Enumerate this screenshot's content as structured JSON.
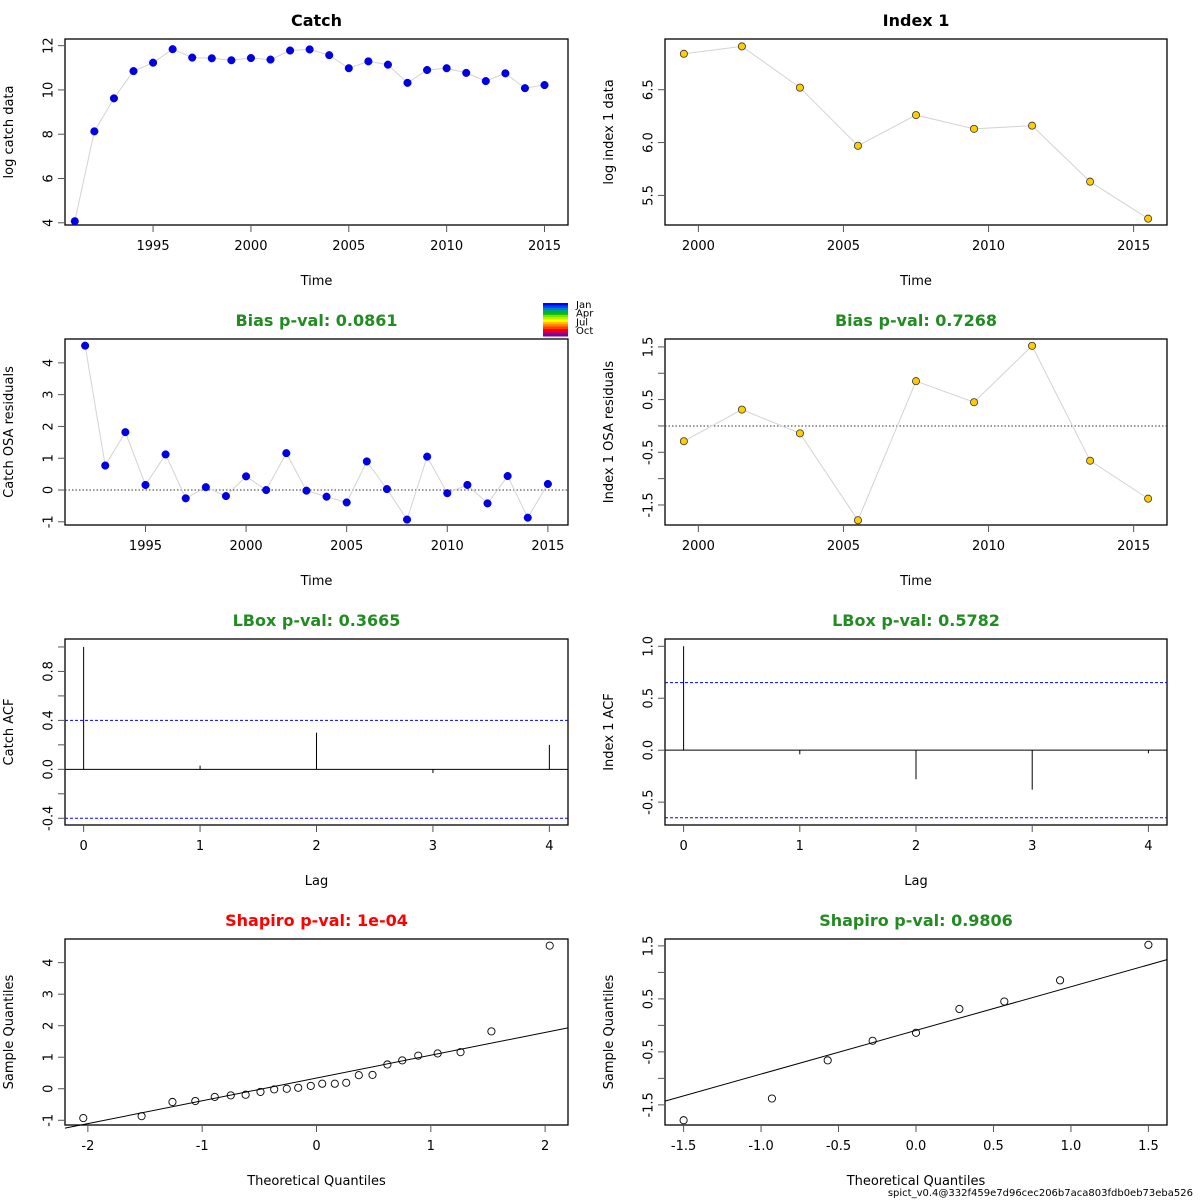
{
  "footer": "spict_v0.4@332f459e7d96cec206b7aca803fdb0eb73eba526",
  "colors": {
    "catch": "#0000e0",
    "index": "#ffcc00",
    "pass": "#228B22",
    "fail": "#ff0000",
    "ci": "#0000ff",
    "line": "#d3d3d3"
  },
  "legend": {
    "labels": [
      "Jan",
      "Apr",
      "Jul",
      "Oct"
    ]
  },
  "chart_data": [
    {
      "id": "catch-data",
      "type": "line",
      "title": "Catch",
      "title_color": "#000000",
      "xlabel": "Time",
      "ylabel": "log catch data",
      "xlim": [
        1990.5,
        2016.2
      ],
      "ylim": [
        3.9,
        12.3
      ],
      "xticks": [
        1995,
        2000,
        2005,
        2010,
        2015
      ],
      "yticks": [
        4,
        6,
        8,
        10,
        12
      ],
      "x": [
        1991,
        1992,
        1993,
        1994,
        1995,
        1996,
        1997,
        1998,
        1999,
        2000,
        2001,
        2002,
        2003,
        2004,
        2005,
        2006,
        2007,
        2008,
        2009,
        2010,
        2011,
        2012,
        2013,
        2014,
        2015
      ],
      "y": [
        4.07,
        8.13,
        9.62,
        10.85,
        11.23,
        11.84,
        11.46,
        11.43,
        11.34,
        11.44,
        11.37,
        11.78,
        11.83,
        11.57,
        10.98,
        11.29,
        11.14,
        10.32,
        10.9,
        10.98,
        10.77,
        10.4,
        10.75,
        10.08,
        10.22
      ],
      "marker": "filled",
      "point_color": "#0000e0"
    },
    {
      "id": "index-data",
      "type": "line",
      "title": "Index 1",
      "title_color": "#000000",
      "xlabel": "Time",
      "ylabel": "log index 1 data",
      "xlim": [
        1998.85,
        2016.15
      ],
      "ylim": [
        5.22,
        6.98
      ],
      "xticks": [
        2000,
        2005,
        2010,
        2015
      ],
      "yticks": [
        5.5,
        6.0,
        6.5
      ],
      "ytick_labels": [
        "5.5",
        "6.0",
        "6.5"
      ],
      "x": [
        1999.5,
        2001.5,
        2003.5,
        2005.5,
        2007.5,
        2009.5,
        2011.5,
        2013.5,
        2015.5
      ],
      "y": [
        6.84,
        6.91,
        6.52,
        5.97,
        6.26,
        6.13,
        6.16,
        5.63,
        5.28
      ],
      "marker": "filled-outline",
      "point_color": "#ffcc00"
    },
    {
      "id": "catch-residuals",
      "type": "line",
      "title": "Bias p-val: 0.0861",
      "title_color": "#228B22",
      "xlabel": "Time",
      "ylabel": "Catch OSA residuals",
      "xlim": [
        1991.0,
        2016.0
      ],
      "ylim": [
        -1.1,
        4.75
      ],
      "xticks": [
        1995,
        2000,
        2005,
        2010,
        2015
      ],
      "yticks": [
        -1,
        0,
        1,
        2,
        3,
        4
      ],
      "x": [
        1992,
        1993,
        1994,
        1995,
        1996,
        1997,
        1998,
        1999,
        2000,
        2001,
        2002,
        2003,
        2004,
        2005,
        2006,
        2007,
        2008,
        2009,
        2010,
        2011,
        2012,
        2013,
        2014,
        2015
      ],
      "y": [
        4.54,
        0.77,
        1.82,
        0.16,
        1.12,
        -0.26,
        0.09,
        -0.19,
        0.43,
        0.0,
        1.16,
        -0.02,
        -0.21,
        -0.39,
        0.9,
        0.03,
        -0.93,
        1.05,
        -0.1,
        0.16,
        -0.42,
        0.44,
        -0.87,
        0.19
      ],
      "hline": 0,
      "marker": "filled",
      "point_color": "#0000e0",
      "show_month_legend": true
    },
    {
      "id": "index-residuals",
      "type": "line",
      "title": "Bias p-val: 0.7268",
      "title_color": "#228B22",
      "xlabel": "Time",
      "ylabel": "Index 1 OSA residuals",
      "xlim": [
        1998.85,
        2016.15
      ],
      "ylim": [
        -1.88,
        1.65
      ],
      "xticks": [
        2000,
        2005,
        2010,
        2015
      ],
      "yticks": [
        -1.5,
        -1.0,
        -0.5,
        0.0,
        0.5,
        1.0,
        1.5
      ],
      "ytick_labels": [
        "-1.5",
        "",
        "-0.5",
        "",
        "0.5",
        "",
        "1.5"
      ],
      "x": [
        1999.5,
        2001.5,
        2003.5,
        2005.5,
        2007.5,
        2009.5,
        2011.5,
        2013.5,
        2015.5
      ],
      "y": [
        -0.29,
        0.31,
        -0.14,
        -1.79,
        0.85,
        0.45,
        1.52,
        -0.66,
        -1.38
      ],
      "hline": 0,
      "marker": "filled-outline",
      "point_color": "#ffcc00"
    },
    {
      "id": "catch-acf",
      "type": "bar",
      "title": "LBox p-val: 0.3665",
      "title_color": "#228B22",
      "xlabel": "Lag",
      "ylabel": "Catch ACF",
      "xlim": [
        -0.16,
        4.16
      ],
      "ylim": [
        -0.455,
        1.065
      ],
      "xticks": [
        0,
        1,
        2,
        3,
        4
      ],
      "yticks": [
        -0.4,
        -0.2,
        0.0,
        0.2,
        0.4,
        0.6,
        0.8,
        1.0
      ],
      "ytick_labels": [
        "-0.4",
        "",
        "0.0",
        "",
        "0.4",
        "",
        "0.8",
        ""
      ],
      "x": [
        0,
        1,
        2,
        3,
        4
      ],
      "y": [
        1.0,
        0.03,
        0.3,
        -0.03,
        0.2
      ],
      "ci": 0.4
    },
    {
      "id": "index-acf",
      "type": "bar",
      "title": "LBox p-val: 0.5782",
      "title_color": "#228B22",
      "xlabel": "Lag",
      "ylabel": "Index 1 ACF",
      "xlim": [
        -0.16,
        4.16
      ],
      "ylim": [
        -0.72,
        1.07
      ],
      "xticks": [
        0,
        1,
        2,
        3,
        4
      ],
      "yticks": [
        -0.5,
        0.0,
        0.5,
        1.0
      ],
      "ytick_labels": [
        "-0.5",
        "0.0",
        "0.5",
        "1.0"
      ],
      "x": [
        0,
        1,
        2,
        3,
        4
      ],
      "y": [
        1.0,
        -0.04,
        -0.28,
        -0.38,
        -0.03
      ],
      "ci": 0.65
    },
    {
      "id": "catch-qq",
      "type": "scatter",
      "title": "Shapiro p-val: 1e-04",
      "title_color": "#ff0000",
      "xlabel": "Theoretical Quantiles",
      "ylabel": "Sample Quantiles",
      "xlim": [
        -2.2,
        2.2
      ],
      "ylim": [
        -1.15,
        4.75
      ],
      "xticks": [
        -2,
        -1,
        0,
        1,
        2
      ],
      "yticks": [
        -1,
        0,
        1,
        2,
        3,
        4
      ],
      "x": [
        -2.04,
        -1.53,
        -1.26,
        -1.06,
        -0.89,
        -0.75,
        -0.62,
        -0.49,
        -0.37,
        -0.26,
        -0.16,
        -0.05,
        0.05,
        0.16,
        0.26,
        0.37,
        0.49,
        0.62,
        0.75,
        0.89,
        1.06,
        1.26,
        1.53,
        2.04
      ],
      "y": [
        -0.93,
        -0.87,
        -0.42,
        -0.39,
        -0.26,
        -0.21,
        -0.19,
        -0.1,
        -0.02,
        0.0,
        0.03,
        0.09,
        0.16,
        0.16,
        0.19,
        0.43,
        0.44,
        0.77,
        0.9,
        1.05,
        1.12,
        1.16,
        1.82,
        4.54
      ],
      "qq_line": {
        "x1": -2.2,
        "y1": -1.25,
        "x2": 2.2,
        "y2": 1.93
      }
    },
    {
      "id": "index-qq",
      "type": "scatter",
      "title": "Shapiro p-val: 0.9806",
      "title_color": "#228B22",
      "xlabel": "Theoretical Quantiles",
      "ylabel": "Sample Quantiles",
      "xlim": [
        -1.62,
        1.62
      ],
      "ylim": [
        -1.88,
        1.63
      ],
      "xticks": [
        -1.5,
        -1.0,
        -0.5,
        0.0,
        0.5,
        1.0,
        1.5
      ],
      "yticks": [
        -1.5,
        -1.0,
        -0.5,
        0.0,
        0.5,
        1.0,
        1.5
      ],
      "xtick_labels": [
        "-1.5",
        "-1.0",
        "-0.5",
        "0.0",
        "0.5",
        "1.0",
        "1.5"
      ],
      "ytick_labels": [
        "-1.5",
        "",
        "-0.5",
        "",
        "0.5",
        "",
        "1.5"
      ],
      "x": [
        -1.5,
        -0.93,
        -0.57,
        -0.28,
        0.0,
        0.28,
        0.57,
        0.93,
        1.5
      ],
      "y": [
        -1.79,
        -1.38,
        -0.66,
        -0.29,
        -0.14,
        0.31,
        0.45,
        0.85,
        1.52
      ],
      "qq_line": {
        "x1": -1.62,
        "y1": -1.43,
        "x2": 1.62,
        "y2": 1.24
      }
    }
  ]
}
